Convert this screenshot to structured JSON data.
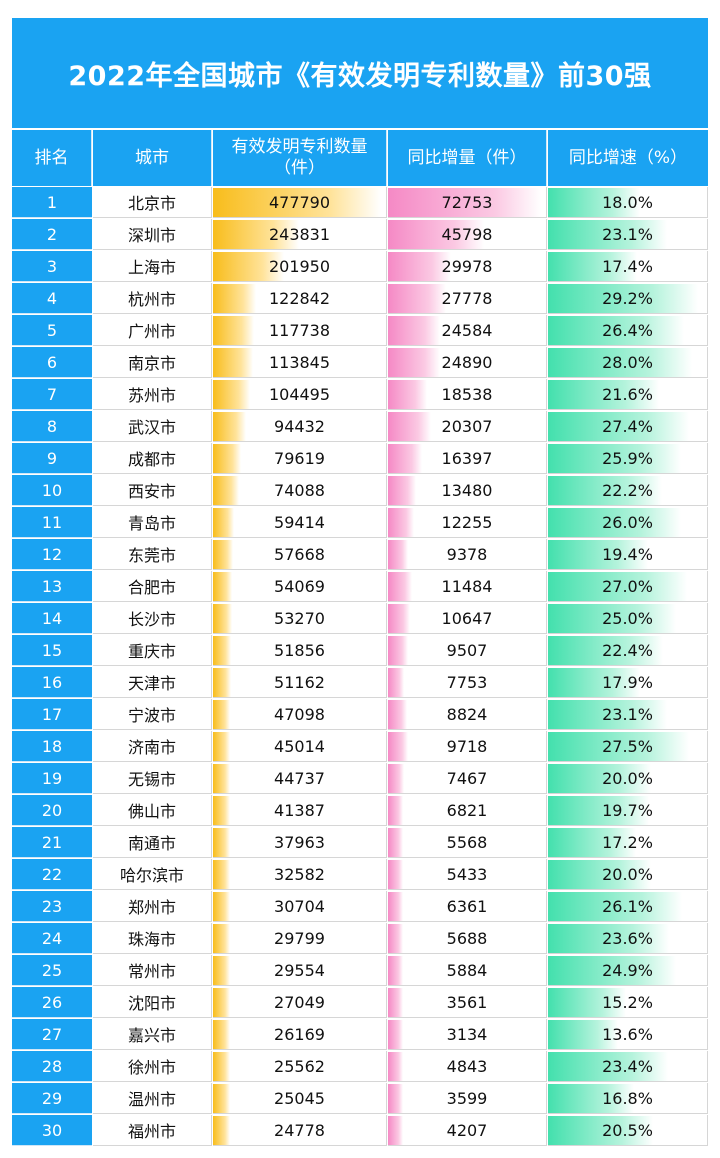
{
  "title": "2022年全国城市《有效发明专利数量》前30强",
  "headers": {
    "rank": "排名",
    "city": "城市",
    "patents": "有效发明专利数量（件）",
    "increase": "同比增量（件）",
    "growth": "同比增速（%）"
  },
  "colors": {
    "header_blue": "#1aa3f2",
    "patent_bar": "#f8bd1c",
    "increase_bar": "#f589c5",
    "growth_bar": "#43e0ad"
  },
  "chart_data": {
    "type": "table",
    "title": "2022年全国城市《有效发明专利数量》前30强",
    "columns": [
      "排名",
      "城市",
      "有效发明专利数量（件）",
      "同比增量（件）",
      "同比增速（%）"
    ],
    "rows": [
      {
        "rank": "1",
        "city": "北京市",
        "patents": 477790,
        "increase": 72753,
        "growth": "18.0%"
      },
      {
        "rank": "2",
        "city": "深圳市",
        "patents": 243831,
        "increase": 45798,
        "growth": "23.1%"
      },
      {
        "rank": "3",
        "city": "上海市",
        "patents": 201950,
        "increase": 29978,
        "growth": "17.4%"
      },
      {
        "rank": "4",
        "city": "杭州市",
        "patents": 122842,
        "increase": 27778,
        "growth": "29.2%"
      },
      {
        "rank": "5",
        "city": "广州市",
        "patents": 117738,
        "increase": 24584,
        "growth": "26.4%"
      },
      {
        "rank": "6",
        "city": "南京市",
        "patents": 113845,
        "increase": 24890,
        "growth": "28.0%"
      },
      {
        "rank": "7",
        "city": "苏州市",
        "patents": 104495,
        "increase": 18538,
        "growth": "21.6%"
      },
      {
        "rank": "8",
        "city": "武汉市",
        "patents": 94432,
        "increase": 20307,
        "growth": "27.4%"
      },
      {
        "rank": "9",
        "city": "成都市",
        "patents": 79619,
        "increase": 16397,
        "growth": "25.9%"
      },
      {
        "rank": "10",
        "city": "西安市",
        "patents": 74088,
        "increase": 13480,
        "growth": "22.2%"
      },
      {
        "rank": "11",
        "city": "青岛市",
        "patents": 59414,
        "increase": 12255,
        "growth": "26.0%"
      },
      {
        "rank": "12",
        "city": "东莞市",
        "patents": 57668,
        "increase": 9378,
        "growth": "19.4%"
      },
      {
        "rank": "13",
        "city": "合肥市",
        "patents": 54069,
        "increase": 11484,
        "growth": "27.0%"
      },
      {
        "rank": "14",
        "city": "长沙市",
        "patents": 53270,
        "increase": 10647,
        "growth": "25.0%"
      },
      {
        "rank": "15",
        "city": "重庆市",
        "patents": 51856,
        "increase": 9507,
        "growth": "22.4%"
      },
      {
        "rank": "16",
        "city": "天津市",
        "patents": 51162,
        "increase": 7753,
        "growth": "17.9%"
      },
      {
        "rank": "17",
        "city": "宁波市",
        "patents": 47098,
        "increase": 8824,
        "growth": "23.1%"
      },
      {
        "rank": "18",
        "city": "济南市",
        "patents": 45014,
        "increase": 9718,
        "growth": "27.5%"
      },
      {
        "rank": "19",
        "city": "无锡市",
        "patents": 44737,
        "increase": 7467,
        "growth": "20.0%"
      },
      {
        "rank": "20",
        "city": "佛山市",
        "patents": 41387,
        "increase": 6821,
        "growth": "19.7%"
      },
      {
        "rank": "21",
        "city": "南通市",
        "patents": 37963,
        "increase": 5568,
        "growth": "17.2%"
      },
      {
        "rank": "22",
        "city": "哈尔滨市",
        "patents": 32582,
        "increase": 5433,
        "growth": "20.0%"
      },
      {
        "rank": "23",
        "city": "郑州市",
        "patents": 30704,
        "increase": 6361,
        "growth": "26.1%"
      },
      {
        "rank": "24",
        "city": "珠海市",
        "patents": 29799,
        "increase": 5688,
        "growth": "23.6%"
      },
      {
        "rank": "25",
        "city": "常州市",
        "patents": 29554,
        "increase": 5884,
        "growth": "24.9%"
      },
      {
        "rank": "26",
        "city": "沈阳市",
        "patents": 27049,
        "increase": 3561,
        "growth": "15.2%"
      },
      {
        "rank": "27",
        "city": "嘉兴市",
        "patents": 26169,
        "increase": 3134,
        "growth": "13.6%"
      },
      {
        "rank": "28",
        "city": "徐州市",
        "patents": 25562,
        "increase": 4843,
        "growth": "23.4%"
      },
      {
        "rank": "29",
        "city": "温州市",
        "patents": 25045,
        "increase": 3599,
        "growth": "16.8%"
      },
      {
        "rank": "30",
        "city": "福州市",
        "patents": 24778,
        "increase": 4207,
        "growth": "20.5%"
      }
    ]
  }
}
